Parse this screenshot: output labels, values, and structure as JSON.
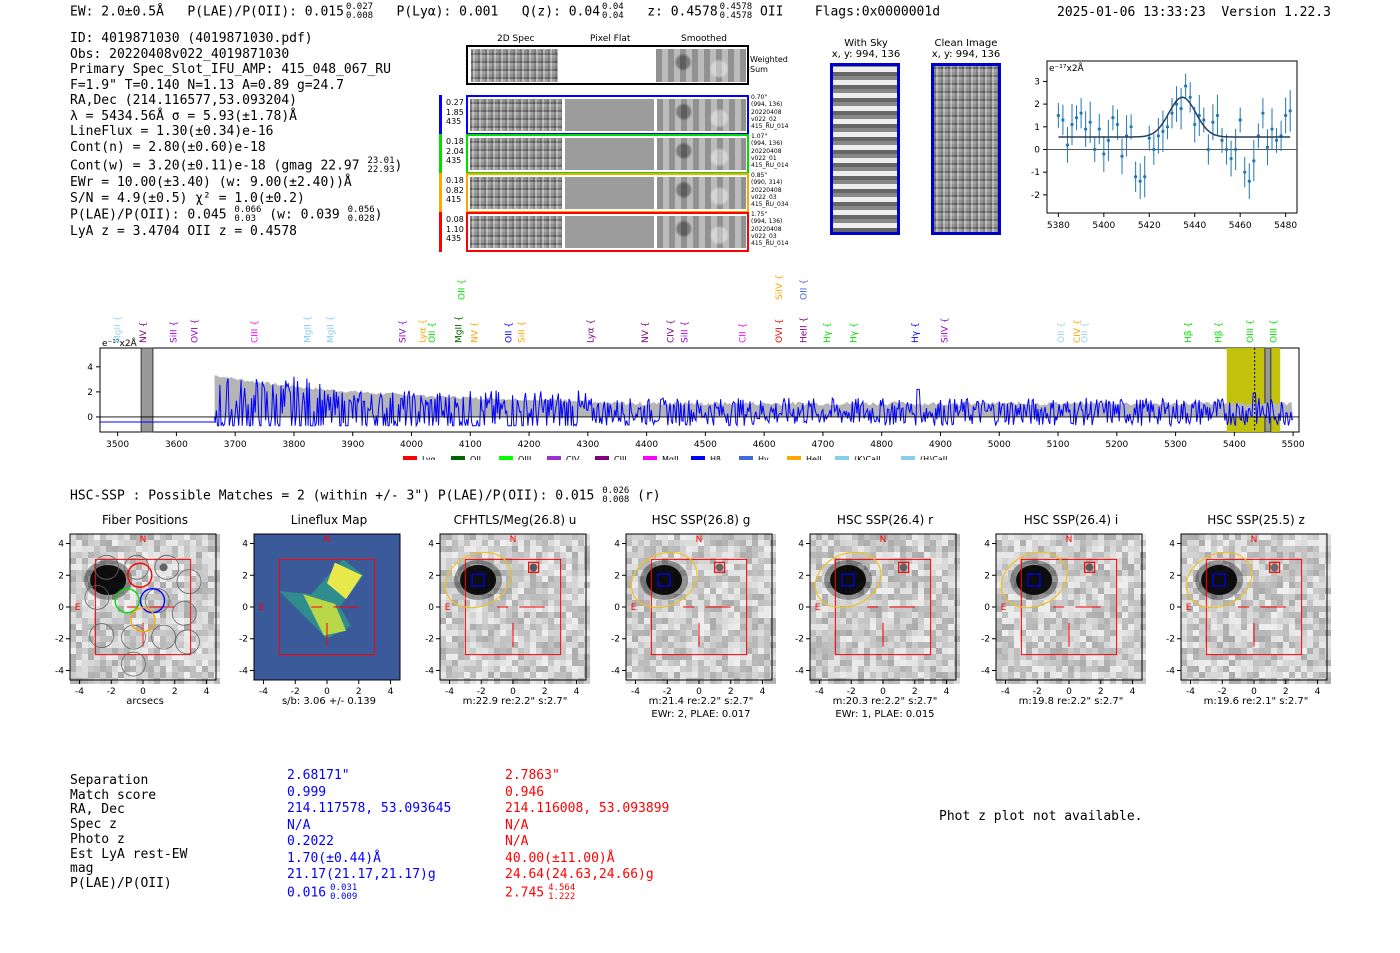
{
  "header": {
    "ew": "EW: 2.0±0.5Å",
    "plae_label": "P(LAE)/P(OII): 0.015",
    "plae_hi": "0.027",
    "plae_lo": "0.008",
    "plya": "P(Lyα): 0.001",
    "qz_label": "Q(z): 0.04",
    "qz_hi": "0.04",
    "qz_lo": "0.04",
    "z_label": "z: 0.4578",
    "z_hi": "0.4578",
    "z_lo": "0.4578",
    "z_line": "OII",
    "flags": "Flags:0x0000001d",
    "timestamp": "2025-01-06 13:33:23",
    "version": "Version 1.22.3"
  },
  "info": {
    "lines": [
      "ID: 4019871030 (4019871030.pdf)",
      "Obs: 20220408v022_4019871030",
      "Primary Spec_Slot_IFU_AMP: 415_048_067_RU",
      "F=1.9\"  T=0.140  N=1.13  A=0.89  g=24.7",
      "RA,Dec (214.116577,53.093204)",
      "λ = 5434.56Å   σ = 5.93(±1.78)Å",
      "LineFlux = 1.30(±0.34)e-16",
      "Cont(n) = 2.80(±0.60)e-18"
    ],
    "contw": "Cont(w) = 3.20(±0.11)e-18 (gmag 22.97",
    "contw_hi": "23.01",
    "contw_lo": "22.93",
    "contw_end": ")",
    "ewr": "EWr = 10.00(±3.40) (w: 9.00(±2.40))Å",
    "sn": "S/N = 4.9(±0.5)  χ² = 1.0(±0.2)",
    "plae2": "P(LAE)/P(OII): 0.045",
    "plae2_hi": "0.066",
    "plae2_lo": "0.03",
    "plae2_w": "(w: 0.039",
    "plae2_w_hi": "0.056",
    "plae2_w_lo": "0.028",
    "plae2_end": ")",
    "lyaz": "LyA z = 3.4704   OII z = 0.4578"
  },
  "cutouts": {
    "col_2d": "2D Spec",
    "col_flat": "Pixel Flat",
    "col_smooth": "Smoothed",
    "weighted": "Weighted\nSum",
    "rows": [
      {
        "color": "#0000ff",
        "left": [
          "0.27",
          "1.85",
          "435"
        ],
        "right": [
          "0.70\"",
          "(994, 136)",
          "20220408",
          "v022_02",
          "415_RU_014"
        ]
      },
      {
        "color": "#00dd00",
        "left": [
          "0.18",
          "2.04",
          "435"
        ],
        "right": [
          "1.07\"",
          "(994, 136)",
          "20220408",
          "v022_01",
          "415_RU_014"
        ]
      },
      {
        "color": "#ffa500",
        "left": [
          "0.18",
          "0.82",
          "415"
        ],
        "right": [
          "0.85\"",
          "(990, 314)",
          "20220408",
          "v022_03",
          "415_RU_034"
        ]
      },
      {
        "color": "#ff0000",
        "left": [
          "0.08",
          "1.10",
          "435"
        ],
        "right": [
          "1.75\"",
          "(994, 136)",
          "20220408",
          "v022_03",
          "415_RU_014"
        ]
      }
    ]
  },
  "sky": {
    "with_sky": "With Sky",
    "with_sky_xy": "x, y: 994, 136",
    "clean": "Clean Image",
    "clean_xy": "x, y: 994, 136"
  },
  "zoom_plot": {
    "unit": "e⁻¹⁷x2Å",
    "xticks": [
      5380,
      5400,
      5420,
      5440,
      5460,
      5480
    ],
    "yticks": [
      -2,
      -1,
      0,
      1,
      2,
      3
    ],
    "xlim": [
      5375,
      5485
    ],
    "ylim": [
      -2.8,
      3.9
    ],
    "points_x": [
      5380,
      5382,
      5384,
      5386,
      5388,
      5390,
      5392,
      5394,
      5396,
      5398,
      5400,
      5402,
      5404,
      5406,
      5408,
      5410,
      5412,
      5414,
      5416,
      5418,
      5420,
      5422,
      5424,
      5426,
      5428,
      5430,
      5432,
      5434,
      5436,
      5438,
      5440,
      5442,
      5444,
      5446,
      5448,
      5450,
      5452,
      5454,
      5456,
      5458,
      5460,
      5462,
      5464,
      5466,
      5468,
      5470,
      5472,
      5474,
      5476,
      5478,
      5480,
      5482
    ],
    "points_y": [
      1.5,
      1.3,
      0.2,
      1.1,
      1.4,
      1.6,
      0.9,
      1.2,
      0.0,
      0.9,
      -0.2,
      0.4,
      1.4,
      1.1,
      -0.3,
      0.6,
      1.0,
      -1.2,
      -1.4,
      -1.2,
      0.5,
      0.0,
      0.6,
      0.8,
      1.0,
      1.6,
      2.0,
      1.8,
      2.8,
      2.3,
      1.1,
      1.5,
      1.3,
      0.0,
      1.2,
      1.5,
      0.4,
      0.0,
      -0.4,
      0.0,
      1.3,
      -1.0,
      -1.4,
      -0.5,
      0.6,
      1.6,
      0.1,
      0.9,
      0.4,
      0.6,
      1.5,
      1.7
    ],
    "fit_center": 5434.56,
    "fit_sigma": 5.93,
    "fit_amp": 1.75,
    "fit_base": 0.55
  },
  "line_labels": [
    {
      "name": "MgII",
      "w": 3505,
      "color": "#9bd4f0",
      "row": 1
    },
    {
      "name": "NV",
      "w": 3548,
      "color": "#800080",
      "row": 1
    },
    {
      "name": "SiII",
      "w": 3600,
      "color": "#9400d3",
      "row": 1
    },
    {
      "name": "OVI",
      "w": 3636,
      "color": "#9400d3",
      "row": 1
    },
    {
      "name": "CIII",
      "w": 3738,
      "color": "#ff00ff",
      "row": 1
    },
    {
      "name": "MgII",
      "w": 3828,
      "color": "#87ceeb",
      "row": 1
    },
    {
      "name": "MgII",
      "w": 3867,
      "color": "#87ceeb",
      "row": 1
    },
    {
      "name": "SIV",
      "w": 3990,
      "color": "#9400d3",
      "row": 1
    },
    {
      "name": "Lyα",
      "w": 4024,
      "color": "#ffa500",
      "row": 1
    },
    {
      "name": "OII",
      "w": 4040,
      "color": "#00dd00",
      "row": 1
    },
    {
      "name": "OII",
      "w": 4090,
      "color": "#00dd00",
      "row": 0
    },
    {
      "name": "MgII",
      "w": 4085,
      "color": "#006400",
      "row": 1
    },
    {
      "name": "NV",
      "w": 4112,
      "color": "#ffa500",
      "row": 1
    },
    {
      "name": "OII",
      "w": 4170,
      "color": "#0000ff",
      "row": 1
    },
    {
      "name": "SiII",
      "w": 4192,
      "color": "#ffa500",
      "row": 1
    },
    {
      "name": "Lyα",
      "w": 4310,
      "color": "#800080",
      "row": 1
    },
    {
      "name": "NV",
      "w": 4402,
      "color": "#800080",
      "row": 1
    },
    {
      "name": "CIV",
      "w": 4446,
      "color": "#800080",
      "row": 1
    },
    {
      "name": "SiII",
      "w": 4470,
      "color": "#9400d3",
      "row": 1
    },
    {
      "name": "CII",
      "w": 4568,
      "color": "#ff00ff",
      "row": 1
    },
    {
      "name": "OVI",
      "w": 4630,
      "color": "#ff0000",
      "row": 1
    },
    {
      "name": "SiIV",
      "w": 4630,
      "color": "#ffa500",
      "row": 0
    },
    {
      "name": "HeII",
      "w": 4672,
      "color": "#800080",
      "row": 1
    },
    {
      "name": "OII",
      "w": 4672,
      "color": "#4169e1",
      "row": 0
    },
    {
      "name": "Hγ",
      "w": 4712,
      "color": "#00dd00",
      "row": 1
    },
    {
      "name": "Hγ",
      "w": 4757,
      "color": "#00dd00",
      "row": 1
    },
    {
      "name": "Hγ",
      "w": 4862,
      "color": "#0000ff",
      "row": 1
    },
    {
      "name": "SiIV",
      "w": 4912,
      "color": "#9400d3",
      "row": 1
    },
    {
      "name": "OII",
      "w": 5110,
      "color": "#9bd4f0",
      "row": 1
    },
    {
      "name": "CIV",
      "w": 5137,
      "color": "#ffa500",
      "row": 1
    },
    {
      "name": "OII",
      "w": 5150,
      "color": "#9bd4f0",
      "row": 1
    },
    {
      "name": "Hβ",
      "w": 5326,
      "color": "#00dd00",
      "row": 1
    },
    {
      "name": "Hβ",
      "w": 5378,
      "color": "#00dd00",
      "row": 1
    },
    {
      "name": "OIII",
      "w": 5432,
      "color": "#00dd00",
      "row": 1
    },
    {
      "name": "OIII",
      "w": 5472,
      "color": "#00dd00",
      "row": 1
    }
  ],
  "chart_data": {
    "type": "line",
    "title": "",
    "xlabel": "",
    "ylabel": "e⁻¹⁷x2Å",
    "xlim": [
      3470,
      5510
    ],
    "ylim": [
      -1.2,
      5.5
    ],
    "xticks": [
      3500,
      3600,
      3700,
      3800,
      3900,
      4000,
      4100,
      4200,
      4300,
      4400,
      4500,
      4600,
      4700,
      4800,
      4900,
      5000,
      5100,
      5200,
      5300,
      5400,
      5500
    ],
    "yticks": [
      0,
      2,
      4
    ],
    "series": [
      {
        "name": "full spectrum",
        "color": "#0000ff"
      },
      {
        "name": "error",
        "color": "#999999"
      }
    ],
    "highlight_x": [
      5387,
      5478
    ],
    "masked_x": [
      [
        3540,
        3560
      ],
      [
        5452,
        5462
      ]
    ],
    "legend": [
      "Lyα",
      "OII",
      "OIII",
      "CIV",
      "CIII",
      "MgII",
      "Hβ",
      "Hγ",
      "HeII",
      "(K)CaII",
      "(H)CaII"
    ],
    "legend_colors": [
      "#ff0000",
      "#006400",
      "#00ff00",
      "#9932cc",
      "#800080",
      "#ff00ff",
      "#0000ff",
      "#4169e1",
      "#ffa500",
      "#87ceeb",
      "#87ceeb"
    ]
  },
  "hsc": {
    "title": "HSC-SSP : Possible Matches = 2 (within +/- 3\")  P(LAE)/P(OII): 0.015",
    "hi": "0.026",
    "lo": "0.008",
    "band": "(r)"
  },
  "thumbs": [
    {
      "title": "Fiber Positions",
      "caption": "arcsecs",
      "caption2": "",
      "type": "fiber"
    },
    {
      "title": "Lineflux Map",
      "caption": "s/b: 3.06 +/- 0.139",
      "caption2": "",
      "type": "flux"
    },
    {
      "title": "CFHTLS/Meg(26.8) u",
      "caption": "m:22.9  re:2.2\"  s:2.7\"",
      "caption2": "",
      "type": "img"
    },
    {
      "title": "HSC SSP(26.8) g",
      "caption": "m:21.4  re:2.2\"  s:2.7\"",
      "caption2": "EWr: 2, PLAE: 0.017",
      "type": "img"
    },
    {
      "title": "HSC SSP(26.4) r",
      "caption": "m:20.3  re:2.2\"  s:2.7\"",
      "caption2": "EWr: 1, PLAE: 0.015",
      "type": "img"
    },
    {
      "title": "HSC SSP(26.4) i",
      "caption": "m:19.8  re:2.2\"  s:2.7\"",
      "caption2": "",
      "type": "img"
    },
    {
      "title": "HSC SSP(25.5) z",
      "caption": "m:19.6  re:2.1\"  s:2.7\"",
      "caption2": "",
      "type": "img"
    }
  ],
  "thumb_axis": {
    "ticks": [
      -4,
      -2,
      0,
      2,
      4
    ],
    "north": "N",
    "east": "E"
  },
  "match_table": {
    "labels": [
      "Separation",
      "Match score",
      "RA, Dec",
      "Spec z",
      "Photo z",
      "Est LyA rest-EW",
      "mag",
      "P(LAE)/P(OII)"
    ],
    "blue": [
      "2.68171\"",
      "0.999",
      "214.117578, 53.093645",
      "N/A",
      "0.2022",
      "1.70(±0.44)Å",
      "21.17(21.17,21.17)g",
      "0.016"
    ],
    "blue_plae_hi": "0.031",
    "blue_plae_lo": "0.009",
    "red": [
      "2.7863\"",
      "0.946",
      "214.116008, 53.093899",
      "N/A",
      "N/A",
      "40.00(±11.00)Å",
      "24.64(24.63,24.66)g",
      "2.745"
    ],
    "red_plae_hi": "4.564",
    "red_plae_lo": "1.222"
  },
  "photz_note": "Phot z plot not available."
}
